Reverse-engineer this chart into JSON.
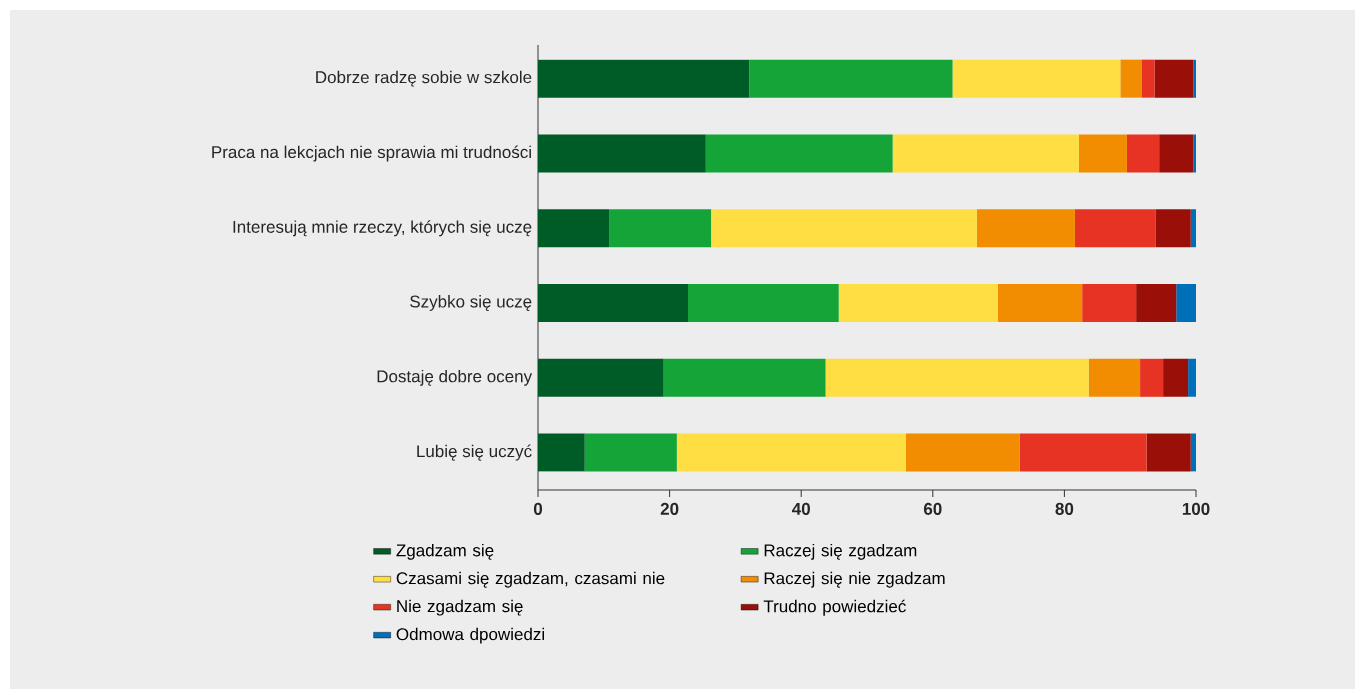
{
  "chart_data": {
    "type": "bar",
    "orientation": "horizontal",
    "stacked": true,
    "legend": "bottom",
    "grid": false,
    "categories": [
      "Dobrze radzę sobie w szkole",
      "Praca na lekcjach nie sprawia mi trudności",
      "Interesują mnie rzeczy, których się uczę",
      "Szybko się uczę",
      "Dostaję dobre oceny",
      "Lubię się uczyć"
    ],
    "xlim": [
      0,
      100
    ],
    "xticks": [
      0,
      20,
      40,
      60,
      80,
      100
    ],
    "series": [
      {
        "name": "Zgadzam się",
        "color": "#005c27",
        "values": [
          32.1,
          25.5,
          10.8,
          22.8,
          19.1,
          7.1
        ]
      },
      {
        "name": "Raczej się zgadzam",
        "color": "#15a437",
        "values": [
          30.9,
          28.4,
          15.5,
          22.9,
          24.6,
          14.0
        ]
      },
      {
        "name": "Czasami się zgadzam, czasami nie",
        "color": "#ffde43",
        "values": [
          25.5,
          28.3,
          40.4,
          24.2,
          40.0,
          34.8
        ]
      },
      {
        "name": "Raczej się nie zgadzam",
        "color": "#f28c00",
        "values": [
          3.2,
          7.3,
          14.9,
          12.8,
          7.8,
          17.3
        ]
      },
      {
        "name": "Nie zgadzam się",
        "color": "#e73324",
        "values": [
          2.0,
          4.9,
          12.3,
          8.2,
          3.5,
          19.3
        ]
      },
      {
        "name": "Trudno powiedzieć",
        "color": "#9a0f08",
        "values": [
          5.9,
          5.2,
          5.3,
          6.1,
          3.8,
          6.7
        ]
      },
      {
        "name": "Odmowa dpowiedzi",
        "color": "#006fba",
        "values": [
          0.5,
          0.5,
          0.8,
          3.0,
          1.2,
          0.8
        ]
      }
    ]
  }
}
